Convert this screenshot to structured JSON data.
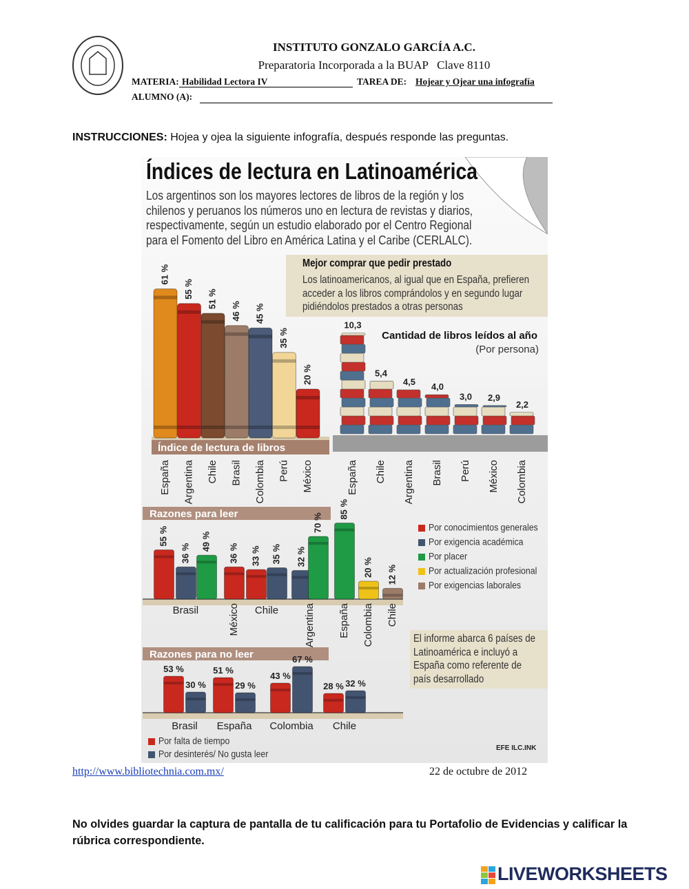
{
  "header": {
    "school": "INSTITUTO GONZALO GARCÍA A.C.",
    "subtitle": "Preparatoria Incorporada a la BUAP   Clave 8110",
    "subject_label": "MATERIA:",
    "subject": "Habilidad Lectora IV",
    "task_label": "TAREA DE:",
    "task": "Hojear y Ojear una infografía",
    "student_label": "ALUMNO (A):"
  },
  "instructions": {
    "label": "INSTRUCCIONES:",
    "text": "Hojea y ojea la siguiente infografía, después responde las preguntas."
  },
  "infographic": {
    "title": "Índices de lectura en Latinoamérica",
    "intro": [
      "Los argentinos son los mayores lectores de libros de la región y los",
      "chilenos y peruanos los números uno en lectura de revistas y diarios,",
      "respectivamente, según un estudio elaborado por el Centro Regional",
      "para el Fomento del Libro en América Latina y el Caribe (CERLALC)."
    ],
    "box_title": "Mejor comprar que pedir prestado",
    "box_text": [
      "Los latinoamericanos, al igual que en España, prefieren",
      "acceder a los libros comprándolos y en segundo lugar",
      "pidiéndolos prestados a otras personas"
    ],
    "note": [
      "El informe abarca 6 países de",
      "Latinoamérica e incluyó a",
      "España como referente de",
      "país desarrollado"
    ],
    "credit": "EFE ILC.INK"
  },
  "chart_data": [
    {
      "type": "bar",
      "title": "Índice de lectura de libros",
      "categories": [
        "España",
        "Argentina",
        "Chile",
        "Brasil",
        "Colombia",
        "Perú",
        "México"
      ],
      "values": [
        61,
        55,
        51,
        46,
        45,
        35,
        20
      ],
      "value_labels": [
        "61 %",
        "55 %",
        "51 %",
        "46 %",
        "45 %",
        "35 %",
        "20 %"
      ],
      "colors": [
        "#e0891c",
        "#c9281f",
        "#7b4a2f",
        "#9c7b69",
        "#4b5b79",
        "#f1d698",
        "#c9281f"
      ]
    },
    {
      "type": "books",
      "title": "Cantidad de libros leídos al año",
      "subtitle": "(Por persona)",
      "categories": [
        "España",
        "Chile",
        "Argentina",
        "Brasil",
        "Perú",
        "México",
        "Colombia"
      ],
      "values": [
        10.3,
        5.4,
        4.5,
        4.0,
        3.0,
        2.9,
        2.2
      ],
      "value_labels": [
        "10,3",
        "5,4",
        "4,5",
        "4,0",
        "3,0",
        "2,9",
        "2,2"
      ],
      "colors": [
        "#4f6f8f",
        "#c4302b",
        "#e6dcc0"
      ]
    },
    {
      "type": "grouped",
      "title": "Razones para leer",
      "categories": [
        "Brasil",
        "México",
        "Chile",
        "Argentina",
        "España",
        "Colombia",
        "Chile"
      ],
      "series": [
        {
          "name": "Por conocimientos generales",
          "color": "#c9281f",
          "values": [
            55,
            36,
            33,
            null,
            null,
            null,
            null
          ],
          "value_labels": [
            "55 %",
            "36 %",
            "33 %",
            null,
            null,
            null,
            null
          ]
        },
        {
          "name": "Por exigencia académica",
          "color": "#435470",
          "values": [
            36,
            null,
            35,
            32,
            null,
            null,
            null
          ],
          "value_labels": [
            "36 %",
            null,
            "35 %",
            "32 %",
            null,
            null,
            null
          ]
        },
        {
          "name": "Por placer",
          "color": "#1f9a45",
          "values": [
            49,
            null,
            null,
            70,
            85,
            null,
            null
          ],
          "value_labels": [
            "49 %",
            null,
            null,
            "70 %",
            "85 %",
            null,
            null
          ]
        },
        {
          "name": "Por actualización profesional",
          "color": "#efc21a",
          "values": [
            null,
            null,
            null,
            null,
            null,
            20,
            null
          ],
          "value_labels": [
            null,
            null,
            null,
            null,
            null,
            "20 %",
            null
          ]
        },
        {
          "name": "Por exigencias laborales",
          "color": "#9c7b69",
          "values": [
            null,
            null,
            null,
            null,
            null,
            null,
            12
          ],
          "value_labels": [
            null,
            null,
            null,
            null,
            null,
            null,
            "12 %"
          ]
        }
      ]
    },
    {
      "type": "grouped",
      "title": "Razones para no leer",
      "categories": [
        "Brasil",
        "España",
        "Colombia",
        "Chile"
      ],
      "series": [
        {
          "name": "Por falta de tiempo",
          "color": "#c9281f",
          "values": [
            53,
            51,
            43,
            28
          ],
          "value_labels": [
            "53 %",
            "51 %",
            "43 %",
            "28 %"
          ]
        },
        {
          "name": "Por desinterés/ No gusta leer",
          "color": "#435470",
          "values": [
            30,
            29,
            67,
            32
          ],
          "value_labels": [
            "30 %",
            "29 %",
            "67 %",
            "32 %"
          ]
        }
      ]
    }
  ],
  "footer": {
    "link": "http://www.bibliotechnia.com.mx/",
    "date": "22 de octubre de 2012",
    "reminder": "No olvides guardar la captura de pantalla de tu calificación para tu Portafolio de Evidencias y calificar la rúbrica correspondiente.",
    "brand": "LIVEWORKSHEETS"
  }
}
